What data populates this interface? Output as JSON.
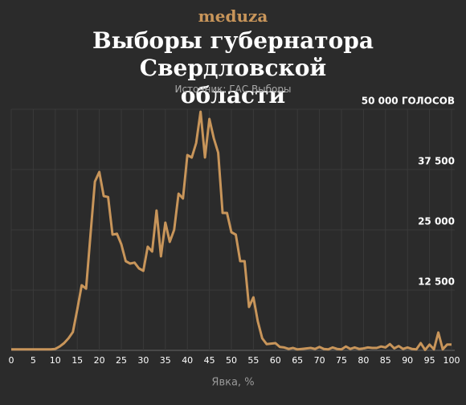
{
  "brand": "meduza",
  "chart_data": {
    "type": "line",
    "title": "Выборы губернатора Свердловской области",
    "subtitle": "Источник: ГАС Выборы",
    "xlabel": "Явка, %",
    "x": [
      0,
      1,
      2,
      3,
      4,
      5,
      6,
      7,
      8,
      9,
      10,
      11,
      12,
      13,
      14,
      15,
      16,
      17,
      18,
      19,
      20,
      21,
      22,
      23,
      24,
      25,
      26,
      27,
      28,
      29,
      30,
      31,
      32,
      33,
      34,
      35,
      36,
      37,
      38,
      39,
      40,
      41,
      42,
      43,
      44,
      45,
      46,
      47,
      48,
      49,
      50,
      51,
      52,
      53,
      54,
      55,
      56,
      57,
      58,
      59,
      60,
      61,
      62,
      63,
      64,
      65,
      66,
      67,
      68,
      69,
      70,
      71,
      72,
      73,
      74,
      75,
      76,
      77,
      78,
      79,
      80,
      81,
      82,
      83,
      84,
      85,
      86,
      87,
      88,
      89,
      90,
      91,
      92,
      93,
      94,
      95,
      96,
      97,
      98,
      99,
      100
    ],
    "series": [
      {
        "name": "Голоса",
        "color": "#c8955a",
        "values": [
          200,
          200,
          200,
          200,
          200,
          200,
          200,
          200,
          200,
          200,
          300,
          800,
          1500,
          2500,
          3800,
          8500,
          13500,
          12800,
          24000,
          35000,
          37000,
          32000,
          31800,
          24000,
          24200,
          22000,
          18500,
          18000,
          18200,
          17000,
          16500,
          21500,
          20500,
          29000,
          19500,
          26500,
          22500,
          25000,
          32500,
          31500,
          40500,
          40000,
          43000,
          49500,
          40000,
          48000,
          44000,
          41000,
          28500,
          28500,
          24500,
          24000,
          18500,
          18500,
          9000,
          11000,
          6000,
          2500,
          1300,
          1400,
          1500,
          700,
          600,
          300,
          500,
          200,
          300,
          400,
          500,
          300,
          700,
          300,
          200,
          600,
          300,
          200,
          800,
          300,
          600,
          300,
          400,
          600,
          500,
          500,
          800,
          600,
          1300,
          400,
          900,
          300,
          600,
          300,
          200,
          1500,
          100,
          1200,
          200,
          3700,
          200,
          1200,
          1200
        ]
      }
    ],
    "xlim": [
      0,
      100
    ],
    "xticks": [
      0,
      5,
      10,
      15,
      20,
      25,
      30,
      35,
      40,
      45,
      50,
      55,
      60,
      65,
      70,
      75,
      80,
      85,
      90,
      95,
      100
    ],
    "ylim": [
      0,
      50000
    ],
    "yticks": [
      {
        "value": 12500,
        "label": "12 500"
      },
      {
        "value": 25000,
        "label": "25 000"
      },
      {
        "value": 37500,
        "label": "37 500"
      },
      {
        "value": 50000,
        "label": "50 000 ГОЛОСОВ"
      }
    ],
    "grid": true
  }
}
